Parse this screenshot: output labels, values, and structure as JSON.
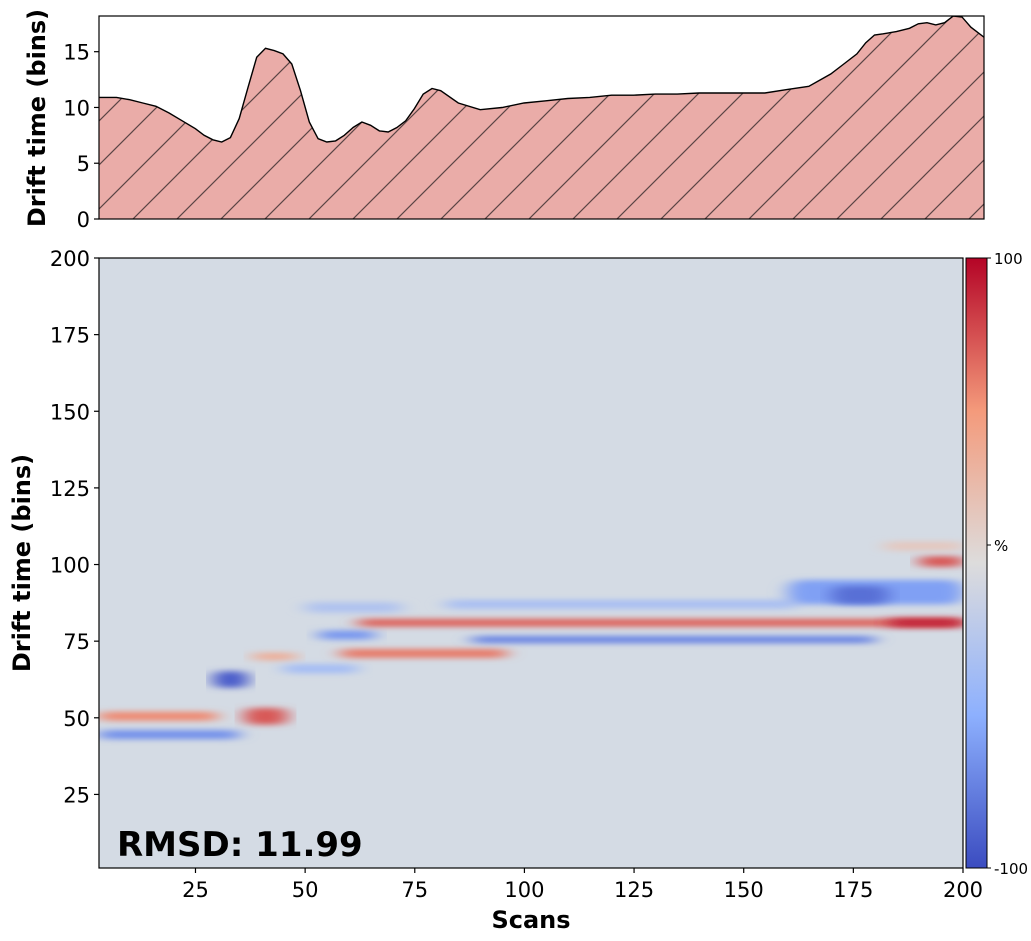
{
  "chart_data": [
    {
      "type": "area",
      "ylabel": "Drift time (bins)",
      "xlim": [
        3,
        205
      ],
      "ylim": [
        0,
        18.2
      ],
      "yticks": [
        0,
        5,
        10,
        15
      ],
      "fill_color": "#eaaca8",
      "hatch": "diagonal",
      "x": [
        3,
        7,
        10,
        13,
        16,
        19,
        22,
        25,
        27,
        29,
        31,
        33,
        35,
        37,
        39,
        41,
        43,
        45,
        47,
        49,
        51,
        53,
        55,
        57,
        59,
        61,
        63,
        65,
        67,
        69,
        71,
        73,
        75,
        77,
        79,
        81,
        85,
        90,
        95,
        100,
        105,
        110,
        115,
        120,
        125,
        130,
        135,
        140,
        145,
        150,
        155,
        160,
        165,
        170,
        173,
        176,
        178,
        180,
        182,
        185,
        188,
        190,
        192,
        194,
        196,
        198,
        200,
        202,
        205
      ],
      "y": [
        10.9,
        10.9,
        10.7,
        10.4,
        10.1,
        9.5,
        8.8,
        8.1,
        7.5,
        7.1,
        6.9,
        7.3,
        9.0,
        11.8,
        14.5,
        15.3,
        15.1,
        14.8,
        13.9,
        11.5,
        8.7,
        7.2,
        6.9,
        7.0,
        7.5,
        8.2,
        8.7,
        8.4,
        7.9,
        7.8,
        8.2,
        8.8,
        9.9,
        11.2,
        11.7,
        11.5,
        10.4,
        9.8,
        10.0,
        10.4,
        10.6,
        10.8,
        10.9,
        11.1,
        11.1,
        11.2,
        11.2,
        11.3,
        11.3,
        11.3,
        11.3,
        11.6,
        11.9,
        13.0,
        13.9,
        14.8,
        15.8,
        16.5,
        16.6,
        16.8,
        17.1,
        17.5,
        17.6,
        17.4,
        17.6,
        18.2,
        18.1,
        17.2,
        16.3
      ]
    },
    {
      "type": "heatmap",
      "xlabel": "Scans",
      "ylabel": "Drift time (bins)",
      "xlim": [
        3,
        200
      ],
      "ylim": [
        1,
        200
      ],
      "xticks": [
        25,
        50,
        75,
        100,
        125,
        150,
        175,
        200
      ],
      "yticks": [
        25,
        50,
        75,
        100,
        125,
        150,
        175,
        200
      ],
      "colormap": "coolwarm",
      "background_color": "#d4dbe4",
      "color_range": [
        -100,
        100
      ],
      "colorbar": {
        "max_label": "100",
        "mid_label": "%",
        "min_label": "-100"
      },
      "annotation": "RMSD: 11.99",
      "features": [
        {
          "x0": 3,
          "x1": 30,
          "y": 50.5,
          "height": 3.0,
          "value": 55
        },
        {
          "x0": 3,
          "x1": 35,
          "y": 44.5,
          "height": 3.0,
          "value": -65
        },
        {
          "x0": 29,
          "x1": 37,
          "y": 62.5,
          "height": 5.5,
          "value": -92
        },
        {
          "x0": 36,
          "x1": 46,
          "y": 50.5,
          "height": 5.5,
          "value": 72
        },
        {
          "x0": 38,
          "x1": 48,
          "y": 70,
          "height": 2.5,
          "value": 35
        },
        {
          "x0": 45,
          "x1": 62,
          "y": 66,
          "height": 3.0,
          "value": -35
        },
        {
          "x0": 53,
          "x1": 66,
          "y": 77,
          "height": 3.0,
          "value": -62
        },
        {
          "x0": 50,
          "x1": 72,
          "y": 86,
          "height": 3.5,
          "value": -28
        },
        {
          "x0": 58,
          "x1": 96,
          "y": 71,
          "height": 3.0,
          "value": 60
        },
        {
          "x0": 62,
          "x1": 200,
          "y": 81,
          "height": 2.6,
          "value": 68
        },
        {
          "x0": 88,
          "x1": 180,
          "y": 75.5,
          "height": 2.4,
          "value": -72
        },
        {
          "x0": 82,
          "x1": 162,
          "y": 87,
          "height": 3.0,
          "value": -32
        },
        {
          "x0": 160,
          "x1": 200,
          "y": 91,
          "height": 8.0,
          "value": -58
        },
        {
          "x0": 170,
          "x1": 183,
          "y": 90,
          "height": 6.0,
          "value": -82
        },
        {
          "x0": 183,
          "x1": 200,
          "y": 81,
          "height": 3.0,
          "value": 88
        },
        {
          "x0": 190,
          "x1": 200,
          "y": 101,
          "height": 3.5,
          "value": 72
        },
        {
          "x0": 182,
          "x1": 200,
          "y": 106,
          "height": 3.0,
          "value": 15
        }
      ]
    }
  ]
}
